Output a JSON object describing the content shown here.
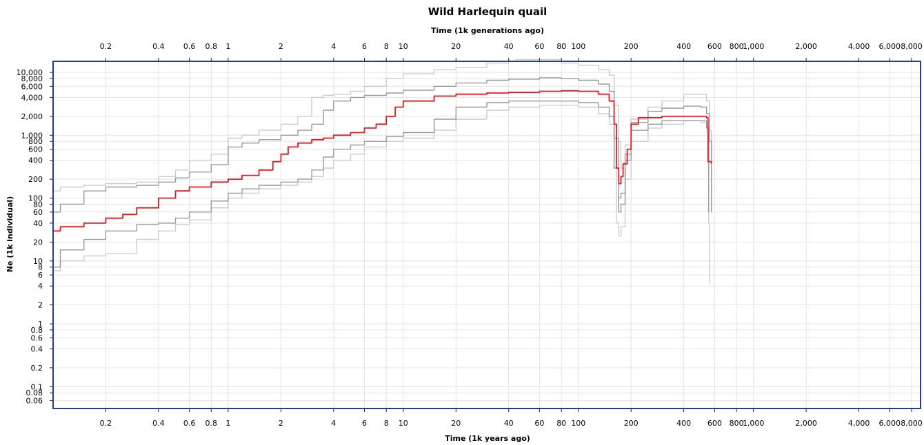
{
  "chart_data": {
    "type": "line",
    "title": "Wild Harlequin quail",
    "xlabel": "Time (1k years ago)",
    "x2label": "Time (1k generations ago)",
    "ylabel": "Ne (1k individual)",
    "x_scale": "log",
    "y_scale": "log",
    "xlim": [
      0.1,
      9000
    ],
    "ylim": [
      0.045,
      15000
    ],
    "grid": true,
    "x_ticks": [
      {
        "value": 0.2,
        "label": "0.2"
      },
      {
        "value": 0.4,
        "label": "0.4"
      },
      {
        "value": 0.6,
        "label": "0.6"
      },
      {
        "value": 0.8,
        "label": "0.8"
      },
      {
        "value": 1,
        "label": "1"
      },
      {
        "value": 2,
        "label": "2"
      },
      {
        "value": 4,
        "label": "4"
      },
      {
        "value": 6,
        "label": "6"
      },
      {
        "value": 8,
        "label": "8"
      },
      {
        "value": 10,
        "label": "10"
      },
      {
        "value": 20,
        "label": "20"
      },
      {
        "value": 40,
        "label": "40"
      },
      {
        "value": 60,
        "label": "60"
      },
      {
        "value": 80,
        "label": "80"
      },
      {
        "value": 100,
        "label": "100"
      },
      {
        "value": 200,
        "label": "200"
      },
      {
        "value": 400,
        "label": "400"
      },
      {
        "value": 600,
        "label": "600"
      },
      {
        "value": 800,
        "label": "800"
      },
      {
        "value": 1000,
        "label": "1,000"
      },
      {
        "value": 2000,
        "label": "2,000"
      },
      {
        "value": 4000,
        "label": "4,000"
      },
      {
        "value": 6000,
        "label": "6,000"
      },
      {
        "value": 8000,
        "label": "8,000"
      }
    ],
    "y_ticks": [
      {
        "value": 0.06,
        "label": "0.06"
      },
      {
        "value": 0.08,
        "label": "0.08"
      },
      {
        "value": 0.1,
        "label": "0.1"
      },
      {
        "value": 0.2,
        "label": "0.2"
      },
      {
        "value": 0.4,
        "label": "0.4"
      },
      {
        "value": 0.6,
        "label": "0.6"
      },
      {
        "value": 0.8,
        "label": "0.8"
      },
      {
        "value": 1,
        "label": "1"
      },
      {
        "value": 2,
        "label": "2"
      },
      {
        "value": 4,
        "label": "4"
      },
      {
        "value": 6,
        "label": "6"
      },
      {
        "value": 8,
        "label": "8"
      },
      {
        "value": 10,
        "label": "10"
      },
      {
        "value": 20,
        "label": "20"
      },
      {
        "value": 40,
        "label": "40"
      },
      {
        "value": 60,
        "label": "60"
      },
      {
        "value": 80,
        "label": "80"
      },
      {
        "value": 100,
        "label": "100"
      },
      {
        "value": 200,
        "label": "200"
      },
      {
        "value": 400,
        "label": "400"
      },
      {
        "value": 600,
        "label": "600"
      },
      {
        "value": 800,
        "label": "800"
      },
      {
        "value": 1000,
        "label": "1,000"
      },
      {
        "value": 2000,
        "label": "2,000"
      },
      {
        "value": 4000,
        "label": "4,000"
      },
      {
        "value": 6000,
        "label": "6,000"
      },
      {
        "value": 8000,
        "label": "8,000"
      },
      {
        "value": 10000,
        "label": "10,000"
      }
    ],
    "series": [
      {
        "role": "outer-upper",
        "color": "#cccccc",
        "x": [
          0.1,
          0.11,
          0.15,
          0.2,
          0.3,
          0.4,
          0.5,
          0.6,
          0.8,
          1.0,
          1.2,
          1.5,
          2.0,
          2.5,
          3.0,
          3.5,
          4.0,
          5.0,
          6.0,
          8.0,
          10,
          15,
          20,
          30,
          40,
          44,
          60,
          80,
          100,
          130,
          150,
          160,
          170,
          175,
          185,
          200,
          250,
          300,
          400,
          500,
          540,
          560,
          575
        ],
        "y": [
          130,
          150,
          160,
          170,
          180,
          220,
          280,
          400,
          500,
          900,
          1000,
          1200,
          1500,
          2000,
          4000,
          4300,
          4500,
          5000,
          6000,
          8000,
          9500,
          11000,
          12000,
          14000,
          15000,
          16000,
          16000,
          14000,
          13000,
          11000,
          9000,
          3000,
          800,
          300,
          700,
          1800,
          2800,
          3500,
          4500,
          4500,
          3500,
          1200,
          420
        ]
      },
      {
        "role": "inner-upper",
        "color": "#999999",
        "x": [
          0.1,
          0.11,
          0.15,
          0.2,
          0.3,
          0.4,
          0.5,
          0.6,
          0.8,
          1.0,
          1.2,
          1.5,
          2.0,
          2.5,
          3.0,
          3.5,
          4.0,
          5.0,
          6.0,
          8.0,
          10,
          15,
          20,
          30,
          40,
          60,
          80,
          100,
          130,
          150,
          160,
          170,
          175,
          185,
          200,
          250,
          300,
          400,
          500,
          540,
          560,
          575
        ],
        "y": [
          60,
          80,
          130,
          150,
          160,
          180,
          210,
          260,
          340,
          650,
          750,
          850,
          1000,
          1200,
          1500,
          2500,
          3500,
          4000,
          4300,
          4700,
          5200,
          6000,
          6800,
          7500,
          7800,
          8200,
          8000,
          7500,
          6500,
          5000,
          900,
          100,
          120,
          500,
          1600,
          2400,
          2700,
          2900,
          2800,
          2200,
          800,
          60
        ]
      },
      {
        "role": "median",
        "color": "#e41a1c",
        "x": [
          0.1,
          0.11,
          0.15,
          0.2,
          0.25,
          0.3,
          0.4,
          0.5,
          0.6,
          0.8,
          1.0,
          1.2,
          1.5,
          1.8,
          2.0,
          2.2,
          2.5,
          3.0,
          3.5,
          4.0,
          5.0,
          6.0,
          7.0,
          8.0,
          9.0,
          10,
          15,
          20,
          30,
          40,
          60,
          80,
          100,
          130,
          150,
          160,
          165,
          170,
          175,
          180,
          190,
          200,
          220,
          300,
          400,
          500,
          540,
          550,
          575
        ],
        "y": [
          30,
          35,
          40,
          48,
          55,
          70,
          100,
          130,
          150,
          180,
          200,
          230,
          280,
          380,
          500,
          650,
          750,
          850,
          900,
          1000,
          1100,
          1300,
          1500,
          2000,
          2800,
          3500,
          4200,
          4500,
          4700,
          4800,
          5000,
          5100,
          5000,
          4500,
          3500,
          1500,
          300,
          170,
          220,
          350,
          600,
          1500,
          1900,
          2000,
          2000,
          2000,
          1900,
          380,
          360
        ]
      },
      {
        "role": "inner-lower",
        "color": "#999999",
        "x": [
          0.1,
          0.11,
          0.15,
          0.2,
          0.3,
          0.4,
          0.5,
          0.6,
          0.8,
          1.0,
          1.2,
          1.5,
          2.0,
          2.5,
          3.0,
          3.5,
          4.0,
          5.0,
          6.0,
          8.0,
          10,
          15,
          20,
          30,
          40,
          60,
          80,
          100,
          130,
          150,
          160,
          170,
          175,
          185,
          200,
          250,
          300,
          400,
          500,
          540,
          555
        ],
        "y": [
          8,
          15,
          22,
          30,
          38,
          40,
          48,
          60,
          90,
          120,
          140,
          160,
          180,
          200,
          280,
          450,
          600,
          700,
          800,
          950,
          1100,
          1800,
          2800,
          3300,
          3500,
          3500,
          3500,
          3300,
          2800,
          2000,
          300,
          60,
          80,
          400,
          1200,
          1500,
          1700,
          1700,
          1700,
          1300,
          60
        ]
      },
      {
        "role": "outer-lower",
        "color": "#cccccc",
        "x": [
          0.1,
          0.11,
          0.15,
          0.2,
          0.3,
          0.4,
          0.5,
          0.6,
          0.8,
          1.0,
          1.2,
          1.5,
          2.0,
          2.5,
          3.0,
          3.5,
          4.0,
          5.0,
          6.0,
          8.0,
          10,
          15,
          20,
          30,
          40,
          60,
          80,
          100,
          130,
          150,
          160,
          165,
          170,
          175,
          185,
          200,
          250,
          300,
          400,
          500,
          540,
          555,
          560
        ],
        "y": [
          7,
          10,
          12,
          13,
          22,
          30,
          38,
          45,
          70,
          100,
          120,
          140,
          160,
          180,
          220,
          300,
          400,
          500,
          650,
          800,
          900,
          1200,
          1800,
          2500,
          2800,
          3000,
          3000,
          2800,
          2200,
          1500,
          300,
          40,
          25,
          35,
          200,
          800,
          1300,
          1500,
          1700,
          1600,
          1400,
          40,
          4.5
        ]
      }
    ]
  }
}
